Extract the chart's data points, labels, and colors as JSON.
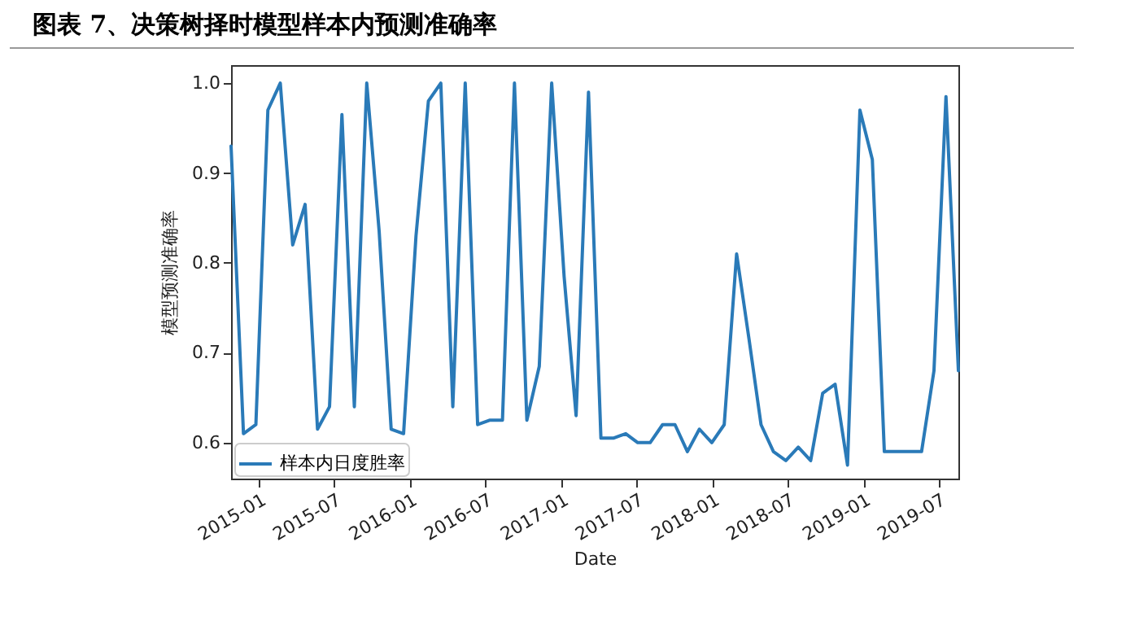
{
  "chart_data": {
    "type": "line",
    "title": "图表 7、决策树择时模型样本内预测准确率",
    "xlabel": "Date",
    "ylabel": "模型预测准确率",
    "x": [
      "2014-10-25",
      "2014-11-24",
      "2014-12-24",
      "2015-01-22",
      "2015-02-21",
      "2015-03-23",
      "2015-04-22",
      "2015-05-22",
      "2015-06-20",
      "2015-07-20",
      "2015-08-19",
      "2015-09-18",
      "2015-10-18",
      "2015-11-16",
      "2015-12-16",
      "2016-01-15",
      "2016-02-14",
      "2016-03-15",
      "2016-04-13",
      "2016-05-13",
      "2016-06-12",
      "2016-07-12",
      "2016-08-11",
      "2016-09-09",
      "2016-10-09",
      "2016-11-08",
      "2016-12-08",
      "2017-01-07",
      "2017-02-05",
      "2017-03-07",
      "2017-04-06",
      "2017-05-06",
      "2017-06-05",
      "2017-07-04",
      "2017-08-03",
      "2017-09-02",
      "2017-10-02",
      "2017-11-01",
      "2017-11-30",
      "2017-12-30",
      "2018-01-29",
      "2018-02-28",
      "2018-03-30",
      "2018-04-28",
      "2018-05-28",
      "2018-06-27",
      "2018-07-27",
      "2018-08-26",
      "2018-09-24",
      "2018-10-24",
      "2018-11-23",
      "2018-12-23",
      "2019-01-22",
      "2019-02-20",
      "2019-03-22",
      "2019-04-21",
      "2019-05-21",
      "2019-06-20",
      "2019-07-19",
      "2019-08-18"
    ],
    "series": [
      {
        "name": "样本内日度胜率",
        "color": "#2a7ab8",
        "values": [
          0.93,
          0.61,
          0.62,
          0.97,
          1.0,
          0.82,
          0.865,
          0.615,
          0.64,
          0.965,
          0.64,
          1.0,
          0.835,
          0.615,
          0.61,
          0.83,
          0.98,
          1.0,
          0.64,
          1.0,
          0.62,
          0.625,
          0.625,
          1.0,
          0.625,
          0.685,
          1.0,
          0.785,
          0.63,
          0.99,
          0.605,
          0.605,
          0.61,
          0.6,
          0.6,
          0.62,
          0.62,
          0.59,
          0.615,
          0.6,
          0.62,
          0.81,
          0.715,
          0.62,
          0.59,
          0.58,
          0.595,
          0.58,
          0.655,
          0.665,
          0.575,
          0.97,
          0.915,
          0.59,
          0.59,
          0.59,
          0.59,
          0.68,
          0.985,
          0.68
        ]
      }
    ],
    "xlim": [
      "2014-10-25",
      "2019-08-18"
    ],
    "xticks": [
      "2015-01",
      "2015-07",
      "2016-01",
      "2016-07",
      "2017-01",
      "2017-07",
      "2018-01",
      "2018-07",
      "2019-01",
      "2019-07"
    ],
    "ylim": [
      0.56,
      1.02
    ],
    "yticks": [
      {
        "value": 0.6,
        "label": "0.6"
      },
      {
        "value": 0.7,
        "label": "0.7"
      },
      {
        "value": 0.8,
        "label": "0.8"
      },
      {
        "value": 0.9,
        "label": "0.9"
      },
      {
        "value": 1,
        "label": "1.0"
      }
    ],
    "legend": "bottom left",
    "grid": false
  }
}
